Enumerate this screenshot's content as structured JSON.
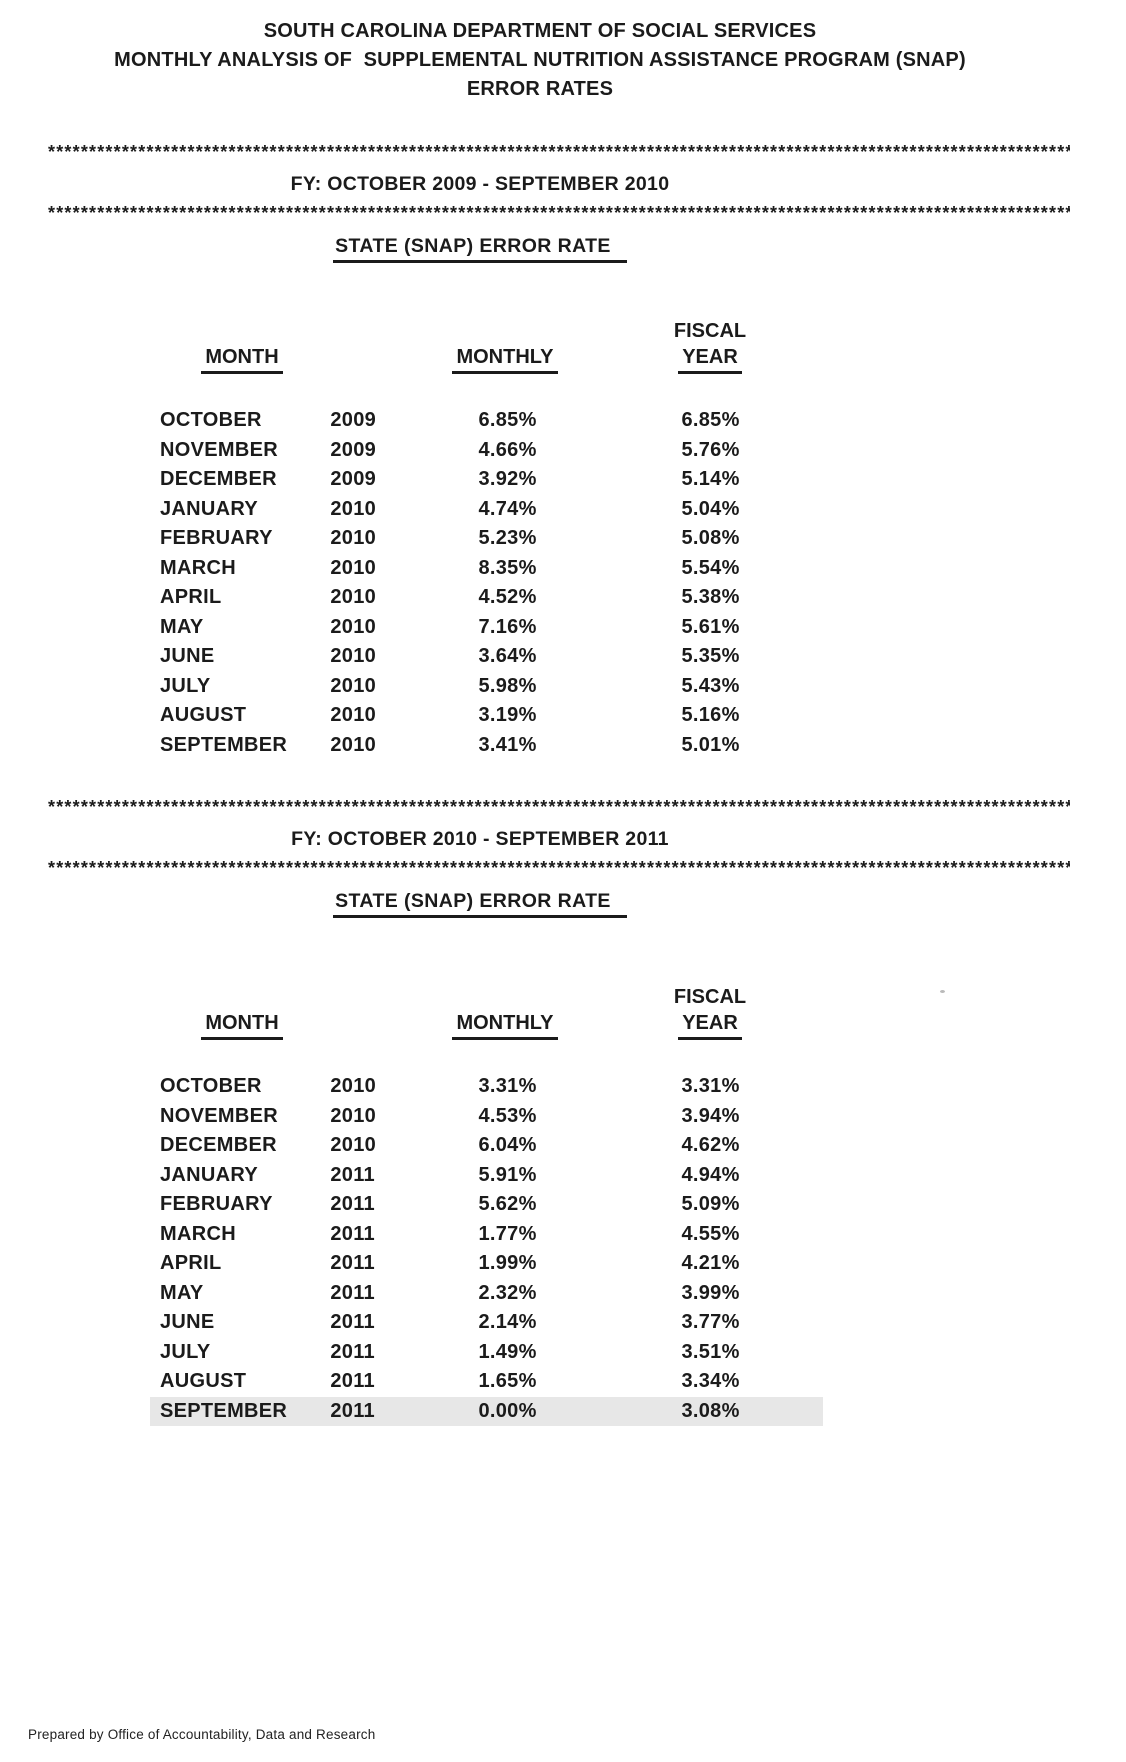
{
  "page": {
    "background": "#ffffff",
    "ink_color": "#1b1b1b",
    "highlight_color": "#e7e7e7",
    "title_lines": [
      "SOUTH CAROLINA DEPARTMENT OF SOCIAL SERVICES",
      "MONTHLY ANALYSIS OF  SUPPLEMENTAL NUTRITION ASSISTANCE PROGRAM (SNAP)",
      "ERROR RATES"
    ],
    "divider": "****************************************************************************************************************************************",
    "footer": "Prepared by Office of Accountability, Data and Research"
  },
  "sections": [
    {
      "fiscal_year_heading": "FY: OCTOBER 2009 - SEPTEMBER 2010",
      "table_title": "STATE (SNAP) ERROR RATE",
      "columns": {
        "month": "MONTH",
        "monthly": "MONTHLY",
        "fiscal_top": "FISCAL",
        "fiscal_bottom": "YEAR"
      },
      "rows": [
        {
          "month": "OCTOBER",
          "year": "2009",
          "monthly": "6.85%",
          "fiscal": "6.85%"
        },
        {
          "month": "NOVEMBER",
          "year": "2009",
          "monthly": "4.66%",
          "fiscal": "5.76%"
        },
        {
          "month": "DECEMBER",
          "year": "2009",
          "monthly": "3.92%",
          "fiscal": "5.14%"
        },
        {
          "month": "JANUARY",
          "year": "2010",
          "monthly": "4.74%",
          "fiscal": "5.04%"
        },
        {
          "month": "FEBRUARY",
          "year": "2010",
          "monthly": "5.23%",
          "fiscal": "5.08%"
        },
        {
          "month": "MARCH",
          "year": "2010",
          "monthly": "8.35%",
          "fiscal": "5.54%"
        },
        {
          "month": "APRIL",
          "year": "2010",
          "monthly": "4.52%",
          "fiscal": "5.38%"
        },
        {
          "month": "MAY",
          "year": "2010",
          "monthly": "7.16%",
          "fiscal": "5.61%"
        },
        {
          "month": "JUNE",
          "year": "2010",
          "monthly": "3.64%",
          "fiscal": "5.35%"
        },
        {
          "month": "JULY",
          "year": "2010",
          "monthly": "5.98%",
          "fiscal": "5.43%"
        },
        {
          "month": "AUGUST",
          "year": "2010",
          "monthly": "3.19%",
          "fiscal": "5.16%"
        },
        {
          "month": "SEPTEMBER",
          "year": "2010",
          "monthly": "3.41%",
          "fiscal": "5.01%"
        }
      ]
    },
    {
      "fiscal_year_heading": "FY: OCTOBER 2010 - SEPTEMBER 2011",
      "table_title": "STATE (SNAP) ERROR RATE",
      "columns": {
        "month": "MONTH",
        "monthly": "MONTHLY",
        "fiscal_top": "FISCAL",
        "fiscal_bottom": "YEAR"
      },
      "rows": [
        {
          "month": "OCTOBER",
          "year": "2010",
          "monthly": "3.31%",
          "fiscal": "3.31%"
        },
        {
          "month": "NOVEMBER",
          "year": "2010",
          "monthly": "4.53%",
          "fiscal": "3.94%"
        },
        {
          "month": "DECEMBER",
          "year": "2010",
          "monthly": "6.04%",
          "fiscal": "4.62%"
        },
        {
          "month": "JANUARY",
          "year": "2011",
          "monthly": "5.91%",
          "fiscal": "4.94%"
        },
        {
          "month": "FEBRUARY",
          "year": "2011",
          "monthly": "5.62%",
          "fiscal": "5.09%"
        },
        {
          "month": "MARCH",
          "year": "2011",
          "monthly": "1.77%",
          "fiscal": "4.55%"
        },
        {
          "month": "APRIL",
          "year": "2011",
          "monthly": "1.99%",
          "fiscal": "4.21%"
        },
        {
          "month": "MAY",
          "year": "2011",
          "monthly": "2.32%",
          "fiscal": "3.99%"
        },
        {
          "month": "JUNE",
          "year": "2011",
          "monthly": "2.14%",
          "fiscal": "3.77%"
        },
        {
          "month": "JULY",
          "year": "2011",
          "monthly": "1.49%",
          "fiscal": "3.51%"
        },
        {
          "month": "AUGUST",
          "year": "2011",
          "monthly": "1.65%",
          "fiscal": "3.34%"
        },
        {
          "month": "SEPTEMBER",
          "year": "2011",
          "monthly": "0.00%",
          "fiscal": "3.08%",
          "highlighted": true
        }
      ]
    }
  ]
}
